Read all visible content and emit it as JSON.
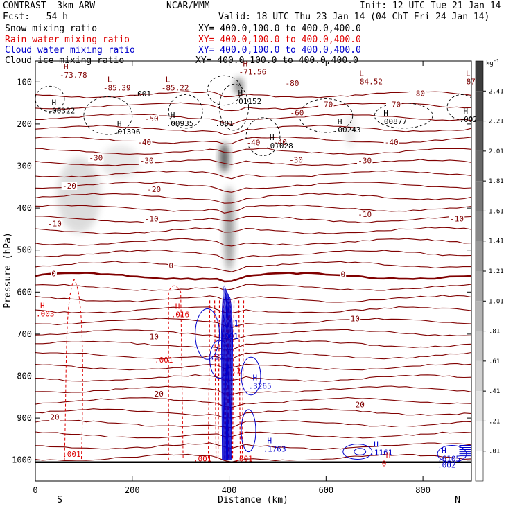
{
  "header": {
    "model": "CONTRAST  3km ARW",
    "fcst": "Fcst:   54 h",
    "org": "NCAR/MMM",
    "init": "Init: 12 UTC Tue 21 Jan 14",
    "valid": "Valid: 18 UTC Thu 23 Jan 14 (04 ChT Fri 24 Jan 14)"
  },
  "legend": {
    "entries": [
      {
        "label": "Snow mixing ratio",
        "xy": "XY= 400.0,100.0 to 400.0,400.0",
        "color": "#000000"
      },
      {
        "label": "Rain water mixing ratio",
        "xy": "XY= 400.0,100.0 to 400.0,400.0",
        "color": "#dd0000"
      },
      {
        "label": "Cloud water mixing ratio",
        "xy": "XY= 400.0,100.0 to 400.0,400.0",
        "color": "#0000cc"
      },
      {
        "label": "Cloud ice mixing ratio",
        "xy": "XY= 400.0,100.0 to 400.0,400.0",
        "color": "#000000"
      }
    ]
  },
  "chart_data": {
    "type": "heatmap",
    "title": "",
    "xlabel": "Distance (km)",
    "ylabel": "Pressure (hPa)",
    "xlim": [
      0,
      900
    ],
    "ylim": [
      1050,
      50
    ],
    "x_ticks": [
      "0",
      "200",
      "400",
      "600",
      "800"
    ],
    "x_tick_values": [
      0,
      200,
      400,
      600,
      800
    ],
    "y_ticks": [
      "100",
      "200",
      "300",
      "400",
      "500",
      "600",
      "700",
      "800",
      "900",
      "1000"
    ],
    "y_tick_values": [
      100,
      200,
      300,
      400,
      500,
      600,
      700,
      800,
      900,
      1000
    ],
    "x_end_labels": {
      "left": "S",
      "right": "N"
    },
    "colorbar": {
      "unit": "g kg",
      "unit_exp": "-1",
      "labels": [
        "2.41",
        "2.21",
        "2.01",
        "1.81",
        "1.61",
        "1.41",
        "1.21",
        "1.01",
        ".81",
        ".61",
        ".41",
        ".21",
        ".01"
      ],
      "levels": [
        2.41,
        2.21,
        2.01,
        1.81,
        1.61,
        1.41,
        1.21,
        1.01,
        0.81,
        0.61,
        0.41,
        0.21,
        0.01
      ]
    },
    "temperature_labels": [
      {
        "text": "-80",
        "x": 530,
        "p": 108
      },
      {
        "text": "-80",
        "x": 790,
        "p": 132
      },
      {
        "text": "-70",
        "x": 600,
        "p": 158
      },
      {
        "text": "-70",
        "x": 740,
        "p": 158
      },
      {
        "text": "-60",
        "x": 540,
        "p": 178
      },
      {
        "text": "-50",
        "x": 240,
        "p": 192
      },
      {
        "text": "-40",
        "x": 225,
        "p": 248
      },
      {
        "text": "-40",
        "x": 505,
        "p": 248
      },
      {
        "text": "-40",
        "x": 735,
        "p": 248
      },
      {
        "text": "-40",
        "x": 450,
        "p": 249
      },
      {
        "text": "-30",
        "x": 125,
        "p": 285
      },
      {
        "text": "-30",
        "x": 230,
        "p": 292
      },
      {
        "text": "-30",
        "x": 538,
        "p": 290
      },
      {
        "text": "-30",
        "x": 680,
        "p": 292
      },
      {
        "text": "-20",
        "x": 70,
        "p": 352
      },
      {
        "text": "-20",
        "x": 245,
        "p": 360
      },
      {
        "text": "-10",
        "x": 240,
        "p": 430
      },
      {
        "text": "-10",
        "x": 40,
        "p": 442
      },
      {
        "text": "-10",
        "x": 680,
        "p": 420
      },
      {
        "text": "-10",
        "x": 870,
        "p": 430
      },
      {
        "text": "0",
        "x": 280,
        "p": 542
      },
      {
        "text": "0",
        "x": 38,
        "p": 561
      },
      {
        "text": "0",
        "x": 635,
        "p": 562
      },
      {
        "text": "10",
        "x": 245,
        "p": 711
      },
      {
        "text": "10",
        "x": 660,
        "p": 668
      },
      {
        "text": "20",
        "x": 255,
        "p": 847
      },
      {
        "text": "20",
        "x": 40,
        "p": 902
      },
      {
        "text": "20",
        "x": 670,
        "p": 873
      }
    ],
    "extrema_labels": [
      {
        "mark": "H",
        "value": "-73.78",
        "x": 50,
        "p": 80
      },
      {
        "mark": "L",
        "value": "-85.39",
        "x": 140,
        "p": 110
      },
      {
        "mark": "L",
        "value": "-85.22",
        "x": 260,
        "p": 110
      },
      {
        "mark": "H",
        "value": "-71.56",
        "x": 420,
        "p": 72
      },
      {
        "mark": "L",
        "value": "-84.52",
        "x": 660,
        "p": 95
      },
      {
        "mark": "L",
        "value": "-87",
        "x": 880,
        "p": 95
      },
      {
        "mark": "H",
        "value": ".00322",
        "x": 25,
        "p": 165
      },
      {
        "mark": "H",
        "value": ".01396",
        "x": 160,
        "p": 215
      },
      {
        "mark": "H",
        "value": ".00935",
        "x": 270,
        "p": 195
      },
      {
        "mark": "H",
        "value": ".01152",
        "x": 410,
        "p": 142
      },
      {
        "mark": "H",
        "value": ".01028",
        "x": 475,
        "p": 248
      },
      {
        "mark": "H",
        "value": ".00243",
        "x": 615,
        "p": 210
      },
      {
        "mark": "H",
        "value": ".00877",
        "x": 710,
        "p": 190
      },
      {
        "mark": "H",
        "value": ".002",
        "x": 875,
        "p": 185
      },
      {
        "mark": "H",
        "value": ".003",
        "x": -5,
        "p": 648
      },
      {
        "mark": "H",
        "value": ".016",
        "x": 280,
        "p": 650
      },
      {
        "mark": "H",
        "value": ".3265",
        "x": 440,
        "p": 820
      },
      {
        "mark": "H",
        "value": ".1763",
        "x": 470,
        "p": 970
      },
      {
        "mark": "H",
        "value": ".1161",
        "x": 690,
        "p": 978
      },
      {
        "mark": "H",
        "value": "0",
        "x": 715,
        "p": 1005
      },
      {
        "mark": "H",
        "value": ".6105",
        "x": 830,
        "p": 993
      },
      {
        "mark": "",
        "value": ".002",
        "x": 830,
        "p": 1008
      }
    ],
    "small_labels": [
      {
        "text": ".001",
        "x": 220,
        "p": 134,
        "color": "#000000"
      },
      {
        "text": ".001",
        "x": 390,
        "p": 205,
        "color": "#000000"
      },
      {
        "text": ".001",
        "x": 265,
        "p": 768,
        "color": "#dd0000"
      },
      {
        "text": ".001",
        "x": 75,
        "p": 992,
        "color": "#dd0000"
      },
      {
        "text": ".001",
        "x": 345,
        "p": 1003,
        "color": "#dd0000"
      },
      {
        "text": ".001",
        "x": 430,
        "p": 1003,
        "color": "#dd0000"
      },
      {
        "text": ".001",
        "x": 400,
        "p": 712,
        "color": "#0000cc"
      },
      {
        "text": ".1",
        "x": 410,
        "p": 680,
        "color": "#0000cc"
      },
      {
        "text": ".1",
        "x": 415,
        "p": 793,
        "color": "#dd0000"
      },
      {
        "text": ".32",
        "x": 375,
        "p": 760,
        "color": "#0000cc"
      }
    ],
    "snow_blobs": [
      {
        "x": 400,
        "p": 450,
        "dx": 10,
        "dp": 100,
        "intensity": 0.55
      },
      {
        "x": 390,
        "p": 280,
        "dx": 9,
        "dp": 35,
        "intensity": 0.95
      },
      {
        "x": 420,
        "p": 110,
        "dx": 9,
        "dp": 20,
        "intensity": 0.7
      },
      {
        "x": 90,
        "p": 370,
        "dx": 45,
        "dp": 90,
        "intensity": 0.18
      },
      {
        "x": 175,
        "p": 290,
        "dx": 40,
        "dp": 40,
        "intensity": 0.12
      },
      {
        "x": 650,
        "p": 215,
        "dx": 10,
        "dp": 40,
        "intensity": 0.12
      }
    ]
  }
}
